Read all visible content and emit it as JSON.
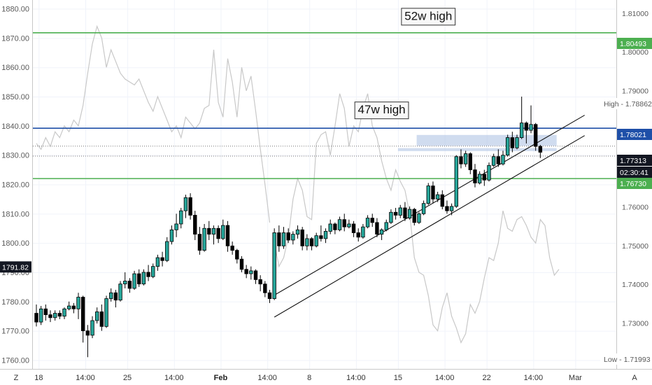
{
  "chart_data": {
    "type": "candlestick",
    "left_axis": {
      "ylim": [
        1757,
        1883
      ],
      "ticks": [
        "1880.00",
        "1870.00",
        "1860.00",
        "1850.00",
        "1840.00",
        "1830.00",
        "1820.00",
        "1810.00",
        "1800.00",
        "1790.00",
        "1780.00",
        "1770.00",
        "1760.00"
      ],
      "tick_values": [
        1880,
        1870,
        1860,
        1850,
        1840,
        1830,
        1820,
        1810,
        1800,
        1790,
        1780,
        1770,
        1760
      ],
      "current_tag": "1791.82",
      "current_value": 1791.82
    },
    "right_axis": {
      "ticks": [
        "1.81000",
        "1.80000",
        "1.79000",
        "1.76000",
        "1.75000",
        "1.74000",
        "1.73000"
      ],
      "tick_values": [
        1.81,
        1.8,
        1.79,
        1.76,
        1.75,
        1.74,
        1.73
      ],
      "high_label": "High - 1.78862",
      "low_label": "Low - 1.71993",
      "tags": [
        {
          "text": "1.80493",
          "value": 1.80493,
          "style": "green"
        },
        {
          "text": "1.78021",
          "value": 1.78021,
          "style": "blue"
        },
        {
          "text": "1.77313",
          "value": 1.77313,
          "style": "dark"
        },
        {
          "text": "02:30:41",
          "value": 1.7701,
          "style": "dark"
        },
        {
          "text": "1.76730",
          "value": 1.7673,
          "style": "green"
        }
      ]
    },
    "x_axis": {
      "ticks": [
        {
          "label": "18",
          "x": 0.5
        },
        {
          "label": "14:00",
          "x": 10.5
        },
        {
          "label": "25",
          "x": 19.5
        },
        {
          "label": "14:00",
          "x": 29.5
        },
        {
          "label": "Feb",
          "x": 39.5,
          "bold": true
        },
        {
          "label": "14:00",
          "x": 49.5
        },
        {
          "label": "8",
          "x": 58.5
        },
        {
          "label": "14:00",
          "x": 68.5
        },
        {
          "label": "15",
          "x": 77.5
        },
        {
          "label": "14:00",
          "x": 87.5
        },
        {
          "label": "22",
          "x": 96.5
        },
        {
          "label": "14:00",
          "x": 106.5
        },
        {
          "label": "Mar",
          "x": 115.5
        }
      ],
      "corner_left": "Z",
      "corner_right": "A"
    },
    "levels": [
      {
        "name": "52w-high-line",
        "value": 1871.8,
        "color": "#4caf50"
      },
      {
        "name": "47w-high-line",
        "value": 1839.2,
        "color": "#1e4fa8"
      },
      {
        "name": "support-line",
        "value": 1822.0,
        "color": "#4caf50"
      }
    ],
    "dotted_levels": [
      1833.2,
      1829.8
    ],
    "zones": [
      {
        "x0": 81.5,
        "x1": 111.5,
        "y0": 1833.2,
        "y1": 1836.9
      },
      {
        "x0": 77.5,
        "x1": 111.5,
        "y0": 1831.4,
        "y1": 1832.4
      }
    ],
    "trendlines": [
      {
        "x0": 51,
        "y0": 1782.2,
        "x1": 113,
        "y1": 1839.5
      },
      {
        "x0": 51,
        "y0": 1774.7,
        "x1": 113,
        "y1": 1832.5
      }
    ],
    "annotations": [
      {
        "text": "52w high",
        "x": 84,
        "y": 1877.3
      },
      {
        "text": "47w high",
        "x": 74,
        "y": 1845.3
      }
    ],
    "comparison_series": {
      "color": "#c8c8c8",
      "segment1": [
        [
          0,
          1834
        ],
        [
          1,
          1832
        ],
        [
          2,
          1836
        ],
        [
          3,
          1833
        ],
        [
          4,
          1838
        ],
        [
          5,
          1836
        ],
        [
          6,
          1840
        ],
        [
          7,
          1838
        ],
        [
          8,
          1842
        ],
        [
          9,
          1840
        ],
        [
          10,
          1847
        ],
        [
          11,
          1858
        ],
        [
          12,
          1868
        ],
        [
          13,
          1874
        ],
        [
          14,
          1870
        ],
        [
          15,
          1860
        ],
        [
          16,
          1866
        ],
        [
          17,
          1862
        ],
        [
          18,
          1858
        ],
        [
          19,
          1856
        ],
        [
          20,
          1855
        ],
        [
          21,
          1854
        ],
        [
          22,
          1856
        ],
        [
          23,
          1852
        ],
        [
          24,
          1848
        ],
        [
          25,
          1845
        ],
        [
          26,
          1850
        ],
        [
          27,
          1846
        ],
        [
          28,
          1842
        ],
        [
          29,
          1838
        ],
        [
          30,
          1840
        ],
        [
          31,
          1836
        ],
        [
          32,
          1843
        ],
        [
          33,
          1841
        ],
        [
          34,
          1839
        ],
        [
          35,
          1841
        ],
        [
          36,
          1846
        ],
        [
          37,
          1847
        ],
        [
          38,
          1866
        ],
        [
          39,
          1848
        ],
        [
          40,
          1843
        ],
        [
          41,
          1863
        ],
        [
          42,
          1855
        ],
        [
          43,
          1843
        ],
        [
          44,
          1860
        ],
        [
          45,
          1852
        ],
        [
          46,
          1857
        ],
        [
          47,
          1845
        ],
        [
          48,
          1832
        ],
        [
          49,
          1820
        ],
        [
          50,
          1807
        ]
      ],
      "segment2": [
        [
          51,
          1800
        ],
        [
          52,
          1792
        ],
        [
          53,
          1795
        ],
        [
          54,
          1802
        ],
        [
          55,
          1815
        ],
        [
          56,
          1822
        ],
        [
          57,
          1818
        ],
        [
          58,
          1809
        ],
        [
          59,
          1808
        ],
        [
          60,
          1834
        ],
        [
          61,
          1837
        ],
        [
          62,
          1838
        ],
        [
          63,
          1830
        ],
        [
          64,
          1840
        ],
        [
          65,
          1851
        ],
        [
          66,
          1846
        ],
        [
          67,
          1833
        ],
        [
          68,
          1840
        ],
        [
          69,
          1838
        ],
        [
          70,
          1846
        ],
        [
          71,
          1851
        ],
        [
          72,
          1840
        ],
        [
          73,
          1836
        ],
        [
          74,
          1828
        ],
        [
          75,
          1822
        ],
        [
          76,
          1818
        ],
        [
          77,
          1825
        ],
        [
          78,
          1821
        ],
        [
          79,
          1818
        ],
        [
          80,
          1810
        ],
        [
          81,
          1795
        ],
        [
          82,
          1790
        ],
        [
          83,
          1789
        ],
        [
          84,
          1782
        ],
        [
          85,
          1772
        ],
        [
          86,
          1770
        ],
        [
          87,
          1778
        ],
        [
          88,
          1783
        ],
        [
          89,
          1775
        ],
        [
          90,
          1771
        ],
        [
          91,
          1766
        ],
        [
          92,
          1769
        ],
        [
          93,
          1779
        ],
        [
          94,
          1776
        ],
        [
          95,
          1780
        ],
        [
          96,
          1788
        ],
        [
          97,
          1795
        ],
        [
          98,
          1794
        ],
        [
          99,
          1800
        ],
        [
          100,
          1811
        ],
        [
          101,
          1805
        ],
        [
          102,
          1804
        ],
        [
          103,
          1808
        ],
        [
          104,
          1809
        ],
        [
          105,
          1806
        ],
        [
          106,
          1802
        ],
        [
          107,
          1800
        ],
        [
          108,
          1808
        ],
        [
          109,
          1806
        ],
        [
          110,
          1795
        ],
        [
          111,
          1789
        ],
        [
          112,
          1791
        ]
      ]
    },
    "candles": [
      [
        1776.0,
        1779.0,
        1771.5,
        1773.0
      ],
      [
        1773.0,
        1778.5,
        1772.0,
        1777.5
      ],
      [
        1777.5,
        1779.0,
        1773.5,
        1775.5
      ],
      [
        1775.5,
        1777.0,
        1773.0,
        1774.5
      ],
      [
        1774.5,
        1777.0,
        1773.5,
        1776.0
      ],
      [
        1776.0,
        1777.0,
        1774.0,
        1775.0
      ],
      [
        1775.0,
        1778.0,
        1774.0,
        1777.5
      ],
      [
        1777.5,
        1780.0,
        1777.0,
        1778.5
      ],
      [
        1778.5,
        1779.5,
        1776.0,
        1777.5
      ],
      [
        1777.5,
        1783.0,
        1774.0,
        1781.5
      ],
      [
        1781.5,
        1782.0,
        1766.0,
        1770.0
      ],
      [
        1770.0,
        1772.0,
        1761.0,
        1768.5
      ],
      [
        1768.5,
        1775.0,
        1767.5,
        1773.5
      ],
      [
        1773.5,
        1778.0,
        1772.5,
        1776.5
      ],
      [
        1776.5,
        1779.0,
        1770.0,
        1771.5
      ],
      [
        1771.5,
        1782.0,
        1771.0,
        1781.0
      ],
      [
        1781.0,
        1784.5,
        1780.0,
        1783.0
      ],
      [
        1783.0,
        1784.0,
        1778.0,
        1780.5
      ],
      [
        1780.5,
        1787.0,
        1780.0,
        1786.0
      ],
      [
        1786.0,
        1790.0,
        1784.5,
        1787.0
      ],
      [
        1787.0,
        1788.0,
        1783.0,
        1784.5
      ],
      [
        1784.5,
        1790.5,
        1784.0,
        1789.5
      ],
      [
        1789.5,
        1791.0,
        1785.0,
        1786.0
      ],
      [
        1786.0,
        1791.0,
        1785.5,
        1790.0
      ],
      [
        1790.0,
        1792.5,
        1787.0,
        1788.5
      ],
      [
        1788.5,
        1793.0,
        1788.0,
        1792.0
      ],
      [
        1792.0,
        1796.0,
        1790.5,
        1795.0
      ],
      [
        1795.0,
        1797.0,
        1792.0,
        1794.0
      ],
      [
        1794.0,
        1802.0,
        1793.5,
        1800.5
      ],
      [
        1800.5,
        1806.0,
        1799.5,
        1804.5
      ],
      [
        1804.5,
        1810.0,
        1802.0,
        1806.5
      ],
      [
        1806.5,
        1812.0,
        1805.0,
        1811.0
      ],
      [
        1811.0,
        1816.5,
        1808.5,
        1815.5
      ],
      [
        1815.5,
        1817.0,
        1808.0,
        1809.5
      ],
      [
        1809.5,
        1811.0,
        1801.0,
        1803.0
      ],
      [
        1803.0,
        1805.5,
        1796.0,
        1797.5
      ],
      [
        1797.5,
        1806.5,
        1797.0,
        1805.0
      ],
      [
        1805.0,
        1807.5,
        1801.0,
        1803.0
      ],
      [
        1803.0,
        1806.0,
        1799.5,
        1805.0
      ],
      [
        1805.0,
        1806.0,
        1800.0,
        1801.5
      ],
      [
        1801.5,
        1808.0,
        1801.0,
        1806.0
      ],
      [
        1806.0,
        1807.5,
        1797.0,
        1799.0
      ],
      [
        1799.0,
        1800.5,
        1796.0,
        1797.5
      ],
      [
        1797.5,
        1798.0,
        1793.0,
        1794.5
      ],
      [
        1794.5,
        1795.5,
        1790.0,
        1791.0
      ],
      [
        1791.0,
        1792.5,
        1788.0,
        1789.5
      ],
      [
        1789.5,
        1792.0,
        1787.5,
        1790.5
      ],
      [
        1790.5,
        1791.0,
        1786.0,
        1787.5
      ],
      [
        1787.5,
        1789.0,
        1783.5,
        1786.0
      ],
      [
        1786.0,
        1787.0,
        1781.5,
        1783.0
      ],
      [
        1783.0,
        1784.0,
        1779.5,
        1781.0
      ],
      [
        1781.0,
        1805.0,
        1780.5,
        1803.5
      ],
      [
        1803.5,
        1806.0,
        1797.0,
        1799.0
      ],
      [
        1799.0,
        1805.5,
        1798.0,
        1803.5
      ],
      [
        1803.5,
        1805.0,
        1800.0,
        1801.0
      ],
      [
        1801.0,
        1804.0,
        1799.5,
        1803.0
      ],
      [
        1803.0,
        1806.0,
        1801.5,
        1804.5
      ],
      [
        1804.5,
        1805.5,
        1797.5,
        1799.0
      ],
      [
        1799.0,
        1803.0,
        1797.5,
        1801.5
      ],
      [
        1801.5,
        1802.0,
        1797.5,
        1799.0
      ],
      [
        1799.0,
        1803.5,
        1798.5,
        1802.5
      ],
      [
        1802.5,
        1806.0,
        1800.5,
        1801.5
      ],
      [
        1801.5,
        1805.0,
        1800.0,
        1804.0
      ],
      [
        1804.0,
        1808.0,
        1803.0,
        1806.5
      ],
      [
        1806.5,
        1807.0,
        1803.0,
        1804.5
      ],
      [
        1804.5,
        1809.0,
        1804.0,
        1808.0
      ],
      [
        1808.0,
        1810.0,
        1804.0,
        1805.5
      ],
      [
        1805.5,
        1808.0,
        1805.0,
        1806.5
      ],
      [
        1806.5,
        1807.5,
        1802.0,
        1803.5
      ],
      [
        1803.5,
        1805.0,
        1800.5,
        1802.0
      ],
      [
        1802.0,
        1806.5,
        1801.5,
        1805.5
      ],
      [
        1805.5,
        1809.5,
        1805.0,
        1808.5
      ],
      [
        1808.5,
        1810.0,
        1805.5,
        1807.0
      ],
      [
        1807.0,
        1808.5,
        1802.0,
        1803.0
      ],
      [
        1803.0,
        1805.0,
        1801.0,
        1804.5
      ],
      [
        1804.5,
        1808.0,
        1804.0,
        1807.0
      ],
      [
        1807.0,
        1811.5,
        1806.5,
        1810.5
      ],
      [
        1810.5,
        1812.0,
        1808.0,
        1809.5
      ],
      [
        1809.5,
        1813.0,
        1808.5,
        1812.0
      ],
      [
        1812.0,
        1814.0,
        1807.5,
        1808.5
      ],
      [
        1808.5,
        1812.5,
        1808.0,
        1811.5
      ],
      [
        1811.5,
        1812.0,
        1806.0,
        1807.0
      ],
      [
        1807.0,
        1810.5,
        1806.5,
        1810.0
      ],
      [
        1810.0,
        1814.5,
        1809.5,
        1813.5
      ],
      [
        1813.5,
        1820.5,
        1813.0,
        1819.5
      ],
      [
        1819.5,
        1821.0,
        1813.5,
        1815.0
      ],
      [
        1815.0,
        1817.5,
        1814.0,
        1816.5
      ],
      [
        1816.5,
        1818.0,
        1811.5,
        1812.5
      ],
      [
        1812.5,
        1814.5,
        1810.0,
        1811.0
      ],
      [
        1811.0,
        1813.5,
        1809.5,
        1812.5
      ],
      [
        1812.5,
        1830.0,
        1812.0,
        1829.5
      ],
      [
        1829.5,
        1832.0,
        1825.5,
        1827.0
      ],
      [
        1827.0,
        1831.5,
        1826.0,
        1830.5
      ],
      [
        1830.5,
        1831.0,
        1823.5,
        1825.0
      ],
      [
        1825.0,
        1827.0,
        1819.0,
        1820.5
      ],
      [
        1820.5,
        1824.5,
        1820.0,
        1823.5
      ],
      [
        1823.5,
        1825.0,
        1819.5,
        1821.5
      ],
      [
        1821.5,
        1827.5,
        1821.0,
        1826.5
      ],
      [
        1826.5,
        1830.5,
        1826.0,
        1829.5
      ],
      [
        1829.5,
        1832.0,
        1826.0,
        1827.0
      ],
      [
        1827.0,
        1831.5,
        1826.5,
        1830.0
      ],
      [
        1830.0,
        1837.0,
        1829.5,
        1836.0
      ],
      [
        1836.0,
        1838.0,
        1831.0,
        1832.5
      ],
      [
        1832.5,
        1837.0,
        1832.0,
        1836.0
      ],
      [
        1836.0,
        1850.0,
        1835.5,
        1841.0
      ],
      [
        1841.0,
        1841.5,
        1834.0,
        1838.5
      ],
      [
        1838.5,
        1847.0,
        1837.5,
        1840.5
      ],
      [
        1840.5,
        1841.0,
        1831.5,
        1833.0
      ],
      [
        1833.0,
        1833.5,
        1829.0,
        1831.0
      ]
    ]
  }
}
